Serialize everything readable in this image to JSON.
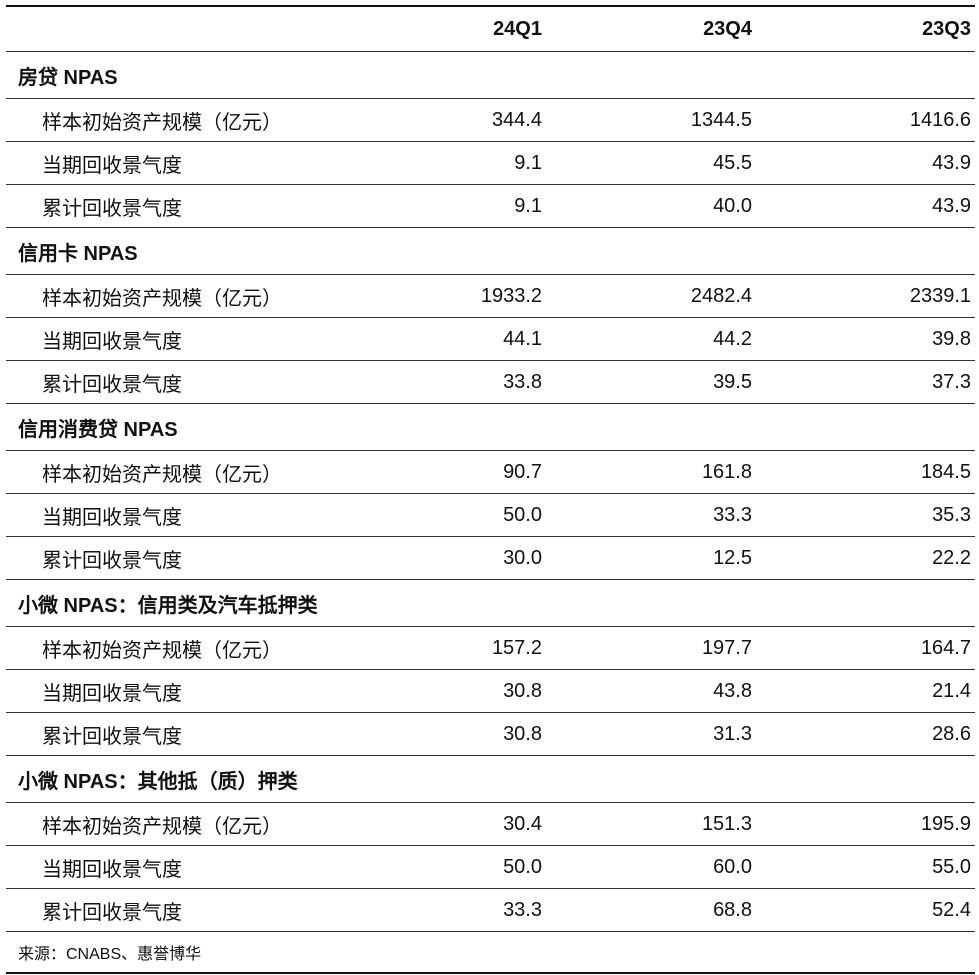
{
  "header": {
    "columns": [
      "24Q1",
      "23Q4",
      "23Q3"
    ]
  },
  "sections": [
    {
      "title": "房贷 NPAS",
      "rows": [
        {
          "label": "样本初始资产规模（亿元）",
          "values": [
            "344.4",
            "1344.5",
            "1416.6"
          ]
        },
        {
          "label": "当期回收景气度",
          "values": [
            "9.1",
            "45.5",
            "43.9"
          ]
        },
        {
          "label": "累计回收景气度",
          "values": [
            "9.1",
            "40.0",
            "43.9"
          ]
        }
      ]
    },
    {
      "title": "信用卡 NPAS",
      "rows": [
        {
          "label": "样本初始资产规模（亿元）",
          "values": [
            "1933.2",
            "2482.4",
            "2339.1"
          ]
        },
        {
          "label": "当期回收景气度",
          "values": [
            "44.1",
            "44.2",
            "39.8"
          ]
        },
        {
          "label": "累计回收景气度",
          "values": [
            "33.8",
            "39.5",
            "37.3"
          ]
        }
      ]
    },
    {
      "title": "信用消费贷 NPAS",
      "rows": [
        {
          "label": "样本初始资产规模（亿元）",
          "values": [
            "90.7",
            "161.8",
            "184.5"
          ]
        },
        {
          "label": "当期回收景气度",
          "values": [
            "50.0",
            "33.3",
            "35.3"
          ]
        },
        {
          "label": "累计回收景气度",
          "values": [
            "30.0",
            "12.5",
            "22.2"
          ]
        }
      ]
    },
    {
      "title": "小微 NPAS：信用类及汽车抵押类",
      "rows": [
        {
          "label": "样本初始资产规模（亿元）",
          "values": [
            "157.2",
            "197.7",
            "164.7"
          ]
        },
        {
          "label": "当期回收景气度",
          "values": [
            "30.8",
            "43.8",
            "21.4"
          ]
        },
        {
          "label": "累计回收景气度",
          "values": [
            "30.8",
            "31.3",
            "28.6"
          ]
        }
      ]
    },
    {
      "title": "小微 NPAS：其他抵（质）押类",
      "rows": [
        {
          "label": "样本初始资产规模（亿元）",
          "values": [
            "30.4",
            "151.3",
            "195.9"
          ]
        },
        {
          "label": "当期回收景气度",
          "values": [
            "50.0",
            "60.0",
            "55.0"
          ]
        },
        {
          "label": "累计回收景气度",
          "values": [
            "33.3",
            "68.8",
            "52.4"
          ]
        }
      ]
    }
  ],
  "source": "来源：CNABS、惠誉博华"
}
